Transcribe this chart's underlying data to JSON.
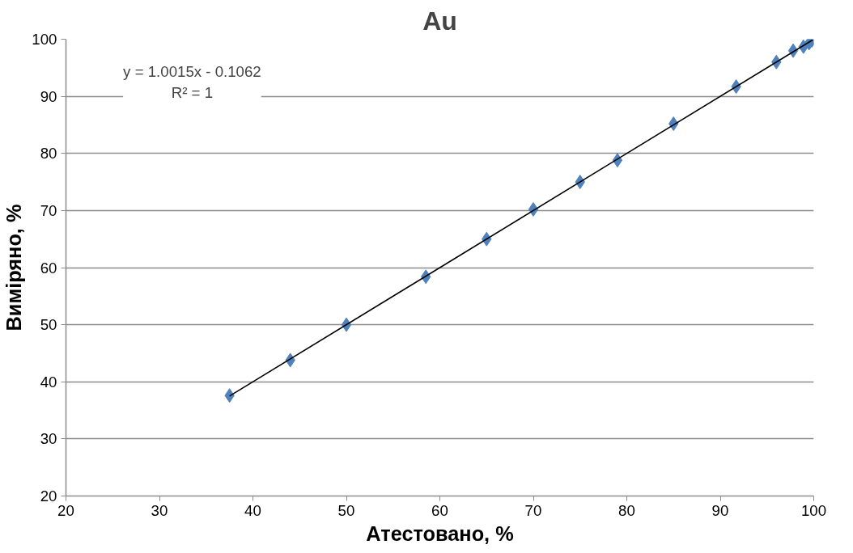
{
  "chart_data": {
    "type": "scatter",
    "title": "Au",
    "xlabel": "Атестовано, %",
    "ylabel": "Виміряно, %",
    "xlim": [
      20,
      100
    ],
    "ylim": [
      20,
      100
    ],
    "xticks": [
      20,
      30,
      40,
      50,
      60,
      70,
      80,
      90,
      100
    ],
    "yticks": [
      20,
      30,
      40,
      50,
      60,
      70,
      80,
      90,
      100
    ],
    "grid": "y",
    "annotations": [
      "y = 1.0015x - 0.1062\nR² = 1"
    ],
    "series": [
      {
        "marker": "diamond",
        "color": "#4f81bd",
        "x": [
          37.5,
          44,
          50,
          58.5,
          65,
          70,
          75,
          79,
          85,
          91.7,
          96,
          97.8,
          98.9,
          99.5,
          99.8
        ],
        "values": [
          37.6,
          43.8,
          50,
          58.4,
          65,
          70.2,
          75,
          78.8,
          85.2,
          91.7,
          96,
          98,
          98.7,
          99.3,
          99.8
        ]
      },
      {
        "type": "line",
        "color": "#000000",
        "line_style": "solid",
        "x": [
          37.5,
          99.9
        ],
        "values": [
          37.5,
          99.9
        ]
      }
    ]
  }
}
